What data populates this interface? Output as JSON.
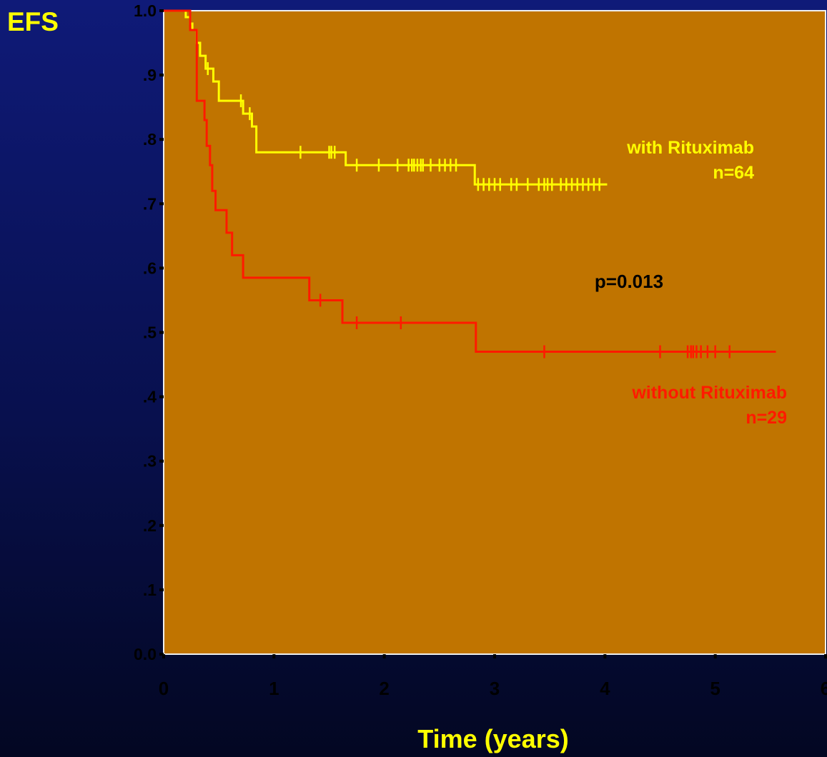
{
  "chart_data": {
    "type": "line",
    "subtype": "kaplan-meier",
    "ylabel": "EFS",
    "xlabel": "Time (years)",
    "xlim": [
      0,
      6
    ],
    "ylim": [
      0,
      1
    ],
    "x_ticks": [
      "0",
      "1",
      "2",
      "3",
      "4",
      "5",
      "6"
    ],
    "y_ticks": [
      "0.0",
      ".1",
      ".2",
      ".3",
      ".4",
      ".5",
      ".6",
      ".7",
      ".8",
      ".9",
      "1.0"
    ],
    "grid": false,
    "plot_background": "#c07400",
    "annotation": "p=0.013",
    "series": [
      {
        "name": "with Rituximab",
        "n_label": "n=64",
        "color": "#ffff00",
        "steps": [
          [
            0,
            1.0
          ],
          [
            0.2,
            0.99
          ],
          [
            0.24,
            0.98
          ],
          [
            0.26,
            0.97
          ],
          [
            0.3,
            0.95
          ],
          [
            0.33,
            0.93
          ],
          [
            0.38,
            0.91
          ],
          [
            0.45,
            0.89
          ],
          [
            0.5,
            0.86
          ],
          [
            0.72,
            0.84
          ],
          [
            0.8,
            0.82
          ],
          [
            0.84,
            0.78
          ],
          [
            1.65,
            0.76
          ],
          [
            2.82,
            0.73
          ],
          [
            4.02,
            0.73
          ]
        ],
        "censored": [
          0.4,
          1.24,
          1.5,
          1.52,
          1.55,
          1.75,
          1.95,
          2.12,
          2.22,
          2.25,
          2.27,
          2.3,
          2.33,
          2.35,
          2.42,
          2.5,
          2.55,
          2.6,
          2.65,
          2.85,
          2.9,
          2.95,
          3.0,
          3.05,
          3.15,
          3.2,
          3.3,
          3.4,
          3.45,
          3.48,
          3.52,
          3.6,
          3.65,
          3.7,
          3.75,
          3.8,
          3.85,
          3.9,
          3.95,
          0.7,
          0.78
        ]
      },
      {
        "name": "without Rituximab",
        "n_label": "n=29",
        "color": "#ff1a00",
        "steps": [
          [
            0,
            1.0
          ],
          [
            0.24,
            0.97
          ],
          [
            0.3,
            0.86
          ],
          [
            0.37,
            0.83
          ],
          [
            0.39,
            0.79
          ],
          [
            0.42,
            0.76
          ],
          [
            0.44,
            0.72
          ],
          [
            0.47,
            0.69
          ],
          [
            0.57,
            0.655
          ],
          [
            0.62,
            0.62
          ],
          [
            0.72,
            0.585
          ],
          [
            1.32,
            0.55
          ],
          [
            1.62,
            0.515
          ],
          [
            2.83,
            0.47
          ],
          [
            5.55,
            0.47
          ]
        ],
        "censored": [
          1.42,
          1.75,
          2.15,
          3.45,
          4.5,
          4.75,
          4.78,
          4.8,
          4.83,
          4.87,
          4.93,
          5.0,
          5.13
        ]
      }
    ]
  }
}
